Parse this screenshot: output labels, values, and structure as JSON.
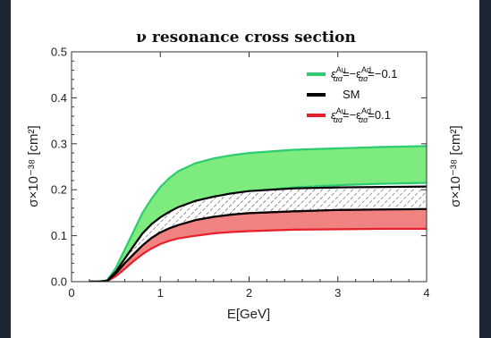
{
  "chart_data": {
    "type": "area",
    "title": "ν resonance cross section",
    "xlabel": "E[GeV]",
    "ylabel": "σ×10⁻³⁸ [cm²]",
    "ylabel_right": "σ×10⁻³⁸ [cm²]",
    "xlim": [
      0,
      4
    ],
    "ylim": [
      0,
      0.5
    ],
    "xticks": [
      0,
      1,
      2,
      3,
      4
    ],
    "yticks": [
      0.0,
      0.1,
      0.2,
      0.3,
      0.4,
      0.5
    ],
    "xtick_labels": [
      "0",
      "1",
      "2",
      "3",
      "4"
    ],
    "ytick_labels": [
      "0.0",
      "0.1",
      "0.2",
      "0.3",
      "0.4",
      "0.5"
    ],
    "grid": false,
    "legend_position": "top-right",
    "x": [
      0.2,
      0.3,
      0.4,
      0.5,
      0.6,
      0.7,
      0.8,
      0.9,
      1.0,
      1.1,
      1.2,
      1.4,
      1.6,
      1.8,
      2.0,
      2.5,
      3.0,
      3.5,
      4.0
    ],
    "series": [
      {
        "name": "ε^Au_αα=−ε^Ad_αα=−0.1",
        "kind": "band",
        "color": "#2ecc71",
        "fill": "#7deb7d",
        "upper": [
          0.0,
          0.0,
          0.003,
          0.03,
          0.07,
          0.11,
          0.15,
          0.18,
          0.206,
          0.225,
          0.24,
          0.258,
          0.268,
          0.275,
          0.28,
          0.287,
          0.29,
          0.293,
          0.295
        ],
        "lower": [
          0.0,
          0.0,
          0.002,
          0.022,
          0.05,
          0.078,
          0.105,
          0.125,
          0.14,
          0.152,
          0.162,
          0.176,
          0.185,
          0.192,
          0.197,
          0.205,
          0.21,
          0.213,
          0.215
        ]
      },
      {
        "name": "SM",
        "kind": "band",
        "color": "#000000",
        "fill": "none",
        "hatched": true,
        "upper": [
          0.0,
          0.0,
          0.002,
          0.022,
          0.05,
          0.078,
          0.105,
          0.125,
          0.14,
          0.152,
          0.162,
          0.176,
          0.185,
          0.192,
          0.197,
          0.203,
          0.205,
          0.206,
          0.207
        ],
        "lower": [
          0.0,
          0.0,
          0.001,
          0.018,
          0.04,
          0.06,
          0.079,
          0.095,
          0.107,
          0.116,
          0.123,
          0.134,
          0.141,
          0.146,
          0.149,
          0.153,
          0.156,
          0.157,
          0.158
        ]
      },
      {
        "name": "ε^Au_αα=−ε^Ad_αα=0.1",
        "kind": "band",
        "color": "#e8202a",
        "fill": "#f08282",
        "upper": [
          0.0,
          0.0,
          0.001,
          0.018,
          0.04,
          0.06,
          0.079,
          0.095,
          0.107,
          0.116,
          0.123,
          0.134,
          0.141,
          0.146,
          0.149,
          0.153,
          0.156,
          0.157,
          0.158
        ],
        "lower": [
          0.0,
          0.0,
          0.001,
          0.012,
          0.028,
          0.045,
          0.06,
          0.072,
          0.082,
          0.089,
          0.094,
          0.1,
          0.105,
          0.108,
          0.11,
          0.113,
          0.114,
          0.115,
          0.115
        ]
      }
    ],
    "legend": [
      {
        "label_main": "ε",
        "sup1": "Au",
        "sub1": "αα",
        "mid": "=−ε",
        "sup2": "Ad",
        "sub2": "αα",
        "tail": "=−0.1",
        "color": "#2ecc71"
      },
      {
        "label_main": "SM",
        "color": "#000000"
      },
      {
        "label_main": "ε",
        "sup1": "Au",
        "sub1": "αα",
        "mid": "=−ε",
        "sup2": "Ad",
        "sub2": "αα",
        "tail": "=0.1",
        "color": "#e8202a"
      }
    ]
  }
}
